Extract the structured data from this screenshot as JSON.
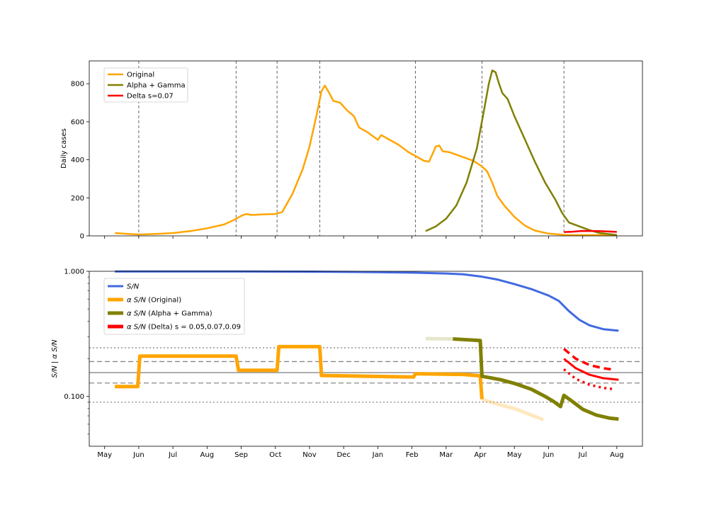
{
  "chart_data": [
    {
      "type": "line",
      "ylabel": "Daily cases",
      "ylim": [
        0,
        920
      ],
      "yticks": [
        0,
        200,
        400,
        600,
        800
      ],
      "xticks": [
        {
          "label": "May",
          "x": 0
        },
        {
          "label": "Jun",
          "x": 1
        },
        {
          "label": "Jul",
          "x": 2
        },
        {
          "label": "Aug",
          "x": 3
        },
        {
          "label": "Sep",
          "x": 4
        },
        {
          "label": "Oct",
          "x": 5
        },
        {
          "label": "Nov",
          "x": 6
        },
        {
          "label": "Dec",
          "x": 7
        },
        {
          "label": "Jan",
          "x": 8
        },
        {
          "label": "Feb",
          "x": 9
        },
        {
          "label": "Mar",
          "x": 10
        },
        {
          "label": "Apr",
          "x": 11
        },
        {
          "label": "May",
          "x": 12
        },
        {
          "label": "Jun",
          "x": 13
        },
        {
          "label": "Jul",
          "x": 14
        },
        {
          "label": "Aug",
          "x": 15
        }
      ],
      "xlim": [
        -0.45,
        15.75
      ],
      "grid": false,
      "vlines": [
        1.0,
        3.85,
        5.05,
        6.3,
        9.1,
        11.05,
        13.45
      ],
      "legend_position": "upper-left",
      "series": [
        {
          "name": "Original",
          "color": "#ffa500",
          "width": 2.5,
          "style": "solid",
          "points": [
            [
              0.3,
              15
            ],
            [
              0.7,
              10
            ],
            [
              1.0,
              7
            ],
            [
              1.5,
              10
            ],
            [
              2.0,
              15
            ],
            [
              2.5,
              25
            ],
            [
              3.0,
              40
            ],
            [
              3.5,
              60
            ],
            [
              3.8,
              85
            ],
            [
              4.0,
              105
            ],
            [
              4.15,
              115
            ],
            [
              4.3,
              110
            ],
            [
              4.6,
              113
            ],
            [
              5.0,
              115
            ],
            [
              5.2,
              125
            ],
            [
              5.5,
              220
            ],
            [
              5.8,
              350
            ],
            [
              6.0,
              470
            ],
            [
              6.2,
              630
            ],
            [
              6.35,
              760
            ],
            [
              6.45,
              790
            ],
            [
              6.55,
              760
            ],
            [
              6.7,
              710
            ],
            [
              6.9,
              700
            ],
            [
              7.1,
              660
            ],
            [
              7.3,
              630
            ],
            [
              7.45,
              570
            ],
            [
              7.7,
              545
            ],
            [
              8.0,
              505
            ],
            [
              8.1,
              530
            ],
            [
              8.3,
              510
            ],
            [
              8.6,
              480
            ],
            [
              8.9,
              440
            ],
            [
              9.2,
              410
            ],
            [
              9.35,
              395
            ],
            [
              9.5,
              390
            ],
            [
              9.6,
              430
            ],
            [
              9.7,
              470
            ],
            [
              9.8,
              475
            ],
            [
              9.9,
              445
            ],
            [
              10.1,
              440
            ],
            [
              10.4,
              420
            ],
            [
              10.8,
              395
            ],
            [
              11.05,
              365
            ],
            [
              11.2,
              340
            ],
            [
              11.35,
              280
            ],
            [
              11.5,
              210
            ],
            [
              11.7,
              160
            ],
            [
              12.0,
              100
            ],
            [
              12.3,
              55
            ],
            [
              12.6,
              28
            ],
            [
              13.0,
              12
            ],
            [
              13.5,
              5
            ],
            [
              15.0,
              4
            ]
          ]
        },
        {
          "name": "Alpha + Gamma",
          "color": "#808000",
          "width": 2.5,
          "style": "solid",
          "points": [
            [
              9.4,
              25
            ],
            [
              9.7,
              50
            ],
            [
              10.0,
              90
            ],
            [
              10.3,
              160
            ],
            [
              10.6,
              280
            ],
            [
              10.9,
              460
            ],
            [
              11.1,
              650
            ],
            [
              11.25,
              800
            ],
            [
              11.35,
              870
            ],
            [
              11.45,
              860
            ],
            [
              11.55,
              800
            ],
            [
              11.65,
              750
            ],
            [
              11.8,
              720
            ],
            [
              12.0,
              630
            ],
            [
              12.3,
              510
            ],
            [
              12.6,
              390
            ],
            [
              12.9,
              280
            ],
            [
              13.2,
              190
            ],
            [
              13.4,
              120
            ],
            [
              13.6,
              70
            ],
            [
              13.9,
              50
            ],
            [
              14.2,
              30
            ],
            [
              14.5,
              15
            ],
            [
              15.0,
              5
            ]
          ]
        },
        {
          "name": "Delta s=0.07",
          "color": "#ff0000",
          "width": 2.5,
          "style": "solid",
          "points": [
            [
              13.45,
              20
            ],
            [
              13.7,
              22
            ],
            [
              14.0,
              26
            ],
            [
              14.5,
              25
            ],
            [
              15.0,
              21
            ]
          ]
        }
      ]
    },
    {
      "type": "line",
      "ylabel": "$S/N$ | $\\alpha$ $S/N$",
      "yscale": "log",
      "ylim": [
        0.04,
        1.0
      ],
      "yticks": [
        {
          "value": 1.0,
          "label": "1.000"
        },
        {
          "value": 0.1,
          "label": "0.100"
        }
      ],
      "minor_yticks": [
        0.05,
        0.06,
        0.07,
        0.08,
        0.09,
        0.2,
        0.3,
        0.4,
        0.5,
        0.6,
        0.7,
        0.8,
        0.9
      ],
      "xticks": [
        {
          "label": "May",
          "x": 0
        },
        {
          "label": "Jun",
          "x": 1
        },
        {
          "label": "Jul",
          "x": 2
        },
        {
          "label": "Aug",
          "x": 3
        },
        {
          "label": "Sep",
          "x": 4
        },
        {
          "label": "Oct",
          "x": 5
        },
        {
          "label": "Nov",
          "x": 6
        },
        {
          "label": "Dec",
          "x": 7
        },
        {
          "label": "Jan",
          "x": 8
        },
        {
          "label": "Feb",
          "x": 9
        },
        {
          "label": "Mar",
          "x": 10
        },
        {
          "label": "Apr",
          "x": 11
        },
        {
          "label": "May",
          "x": 12
        },
        {
          "label": "Jun",
          "x": 13
        },
        {
          "label": "Jul",
          "x": 14
        },
        {
          "label": "Aug",
          "x": 15
        }
      ],
      "xlim": [
        -0.45,
        15.75
      ],
      "grid": false,
      "hlines": [
        {
          "y": 0.245,
          "style": "dotted",
          "color": "#888888"
        },
        {
          "y": 0.19,
          "style": "dashed",
          "color": "#888888"
        },
        {
          "y": 0.155,
          "style": "solid",
          "color": "#888888"
        },
        {
          "y": 0.128,
          "style": "dashed",
          "color": "#888888"
        },
        {
          "y": 0.09,
          "style": "dotted",
          "color": "#888888"
        }
      ],
      "legend_position": "upper-left",
      "legend": [
        {
          "label": "$S/N$",
          "color": "#4169e1"
        },
        {
          "label": "$\\alpha$ $S/N$ (Original)",
          "color": "#ffa500"
        },
        {
          "label": "$\\alpha$ $S/N$ (Alpha + Gamma)",
          "color": "#808000"
        },
        {
          "label": "$\\alpha$ $S/N$ (Delta) s = 0.05,0.07,0.09",
          "color": "#ff0000"
        }
      ],
      "series": [
        {
          "name": "$S/N$",
          "color": "#4169e1",
          "width": 3,
          "style": "solid",
          "alpha": 1,
          "points": [
            [
              0.3,
              0.998
            ],
            [
              4.0,
              0.997
            ],
            [
              6.0,
              0.993
            ],
            [
              8.0,
              0.985
            ],
            [
              9.0,
              0.975
            ],
            [
              10.0,
              0.96
            ],
            [
              10.5,
              0.945
            ],
            [
              11.0,
              0.91
            ],
            [
              11.5,
              0.86
            ],
            [
              12.0,
              0.79
            ],
            [
              12.5,
              0.72
            ],
            [
              13.0,
              0.64
            ],
            [
              13.3,
              0.58
            ],
            [
              13.6,
              0.48
            ],
            [
              13.9,
              0.41
            ],
            [
              14.2,
              0.37
            ],
            [
              14.6,
              0.345
            ],
            [
              15.05,
              0.335
            ]
          ]
        },
        {
          "name": "$\\alpha$ $S/N$ (Original)",
          "color": "#ffa500",
          "width": 5,
          "style": "solid",
          "alpha": 1,
          "points": [
            [
              0.3,
              0.12
            ],
            [
              0.97,
              0.12
            ],
            [
              1.03,
              0.21
            ],
            [
              3.85,
              0.21
            ],
            [
              3.92,
              0.162
            ],
            [
              5.05,
              0.162
            ],
            [
              5.1,
              0.25
            ],
            [
              6.3,
              0.25
            ],
            [
              6.35,
              0.147
            ],
            [
              9.05,
              0.143
            ],
            [
              9.1,
              0.152
            ],
            [
              10.5,
              0.15
            ],
            [
              11.0,
              0.146
            ],
            [
              11.05,
              0.095
            ]
          ]
        },
        {
          "name": "Original (projected)",
          "color": "#ffa500",
          "width": 5,
          "style": "solid",
          "alpha": 0.25,
          "points": [
            [
              11.05,
              0.095
            ],
            [
              11.5,
              0.087
            ],
            [
              12.0,
              0.08
            ],
            [
              12.5,
              0.071
            ],
            [
              12.85,
              0.065
            ]
          ]
        },
        {
          "name": "Alpha + Gamma (faded)",
          "color": "#808000",
          "width": 5,
          "style": "solid",
          "alpha": 0.2,
          "points": [
            [
              9.4,
              0.29
            ],
            [
              10.2,
              0.288
            ]
          ]
        },
        {
          "name": "$\\alpha$ $S/N$ (Alpha + Gamma)",
          "color": "#808000",
          "width": 5,
          "style": "solid",
          "alpha": 1,
          "points": [
            [
              10.2,
              0.288
            ],
            [
              11.0,
              0.28
            ],
            [
              11.05,
              0.145
            ],
            [
              11.6,
              0.136
            ],
            [
              12.0,
              0.127
            ],
            [
              12.5,
              0.114
            ],
            [
              12.9,
              0.1
            ],
            [
              13.15,
              0.091
            ],
            [
              13.35,
              0.083
            ],
            [
              13.45,
              0.102
            ],
            [
              13.7,
              0.091
            ],
            [
              14.0,
              0.079
            ],
            [
              14.4,
              0.071
            ],
            [
              14.8,
              0.067
            ],
            [
              15.05,
              0.066
            ]
          ]
        },
        {
          "name": "Delta s=0.09",
          "color": "#ff0000",
          "width": 3.5,
          "style": "dashed",
          "alpha": 1,
          "points": [
            [
              13.45,
              0.24
            ],
            [
              13.8,
              0.2
            ],
            [
              14.2,
              0.178
            ],
            [
              14.6,
              0.168
            ],
            [
              14.95,
              0.163
            ]
          ]
        },
        {
          "name": "Delta s=0.07",
          "color": "#ff0000",
          "width": 3,
          "style": "solid",
          "alpha": 1,
          "points": [
            [
              13.45,
              0.2
            ],
            [
              13.8,
              0.168
            ],
            [
              14.2,
              0.149
            ],
            [
              14.6,
              0.14
            ],
            [
              15.05,
              0.136
            ]
          ]
        },
        {
          "name": "Delta s=0.05",
          "color": "#ff0000",
          "width": 3.5,
          "style": "dotted",
          "alpha": 1,
          "points": [
            [
              13.45,
              0.165
            ],
            [
              13.8,
              0.138
            ],
            [
              14.2,
              0.124
            ],
            [
              14.6,
              0.117
            ],
            [
              14.95,
              0.114
            ]
          ]
        }
      ]
    }
  ]
}
